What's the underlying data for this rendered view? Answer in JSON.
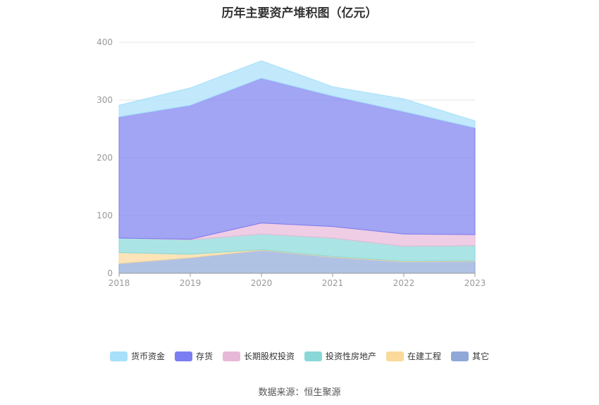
{
  "chart_data": {
    "type": "area",
    "stacked": true,
    "title": "历年主要资产堆积图（亿元）",
    "x": [
      "2018",
      "2019",
      "2020",
      "2021",
      "2022",
      "2023"
    ],
    "ylim": [
      0,
      400
    ],
    "yticks": [
      "0",
      "100",
      "200",
      "300",
      "400"
    ],
    "grid": true,
    "legend_position": "bottom",
    "series": [
      {
        "name": "其它",
        "color": "#8fa8d8",
        "values": [
          17,
          27,
          40,
          28,
          20,
          21
        ]
      },
      {
        "name": "在建工程",
        "color": "#fbd99a",
        "values": [
          19,
          6,
          1,
          1,
          1,
          1
        ]
      },
      {
        "name": "投资性房地产",
        "color": "#88d8d8",
        "values": [
          25,
          25,
          27,
          32,
          26,
          26
        ]
      },
      {
        "name": "长期股权投资",
        "color": "#e8b8d8",
        "values": [
          0,
          1,
          19,
          20,
          21,
          19
        ]
      },
      {
        "name": "存货",
        "color": "#7b7ef0",
        "values": [
          210,
          232,
          251,
          226,
          212,
          185
        ]
      },
      {
        "name": "货币资金",
        "color": "#a6e0fa",
        "values": [
          20,
          30,
          30,
          16,
          22,
          12
        ]
      }
    ],
    "legend_order": [
      "货币资金",
      "存货",
      "长期股权投资",
      "投资性房地产",
      "在建工程",
      "其它"
    ]
  },
  "footer": {
    "source": "数据来源：恒生聚源"
  }
}
